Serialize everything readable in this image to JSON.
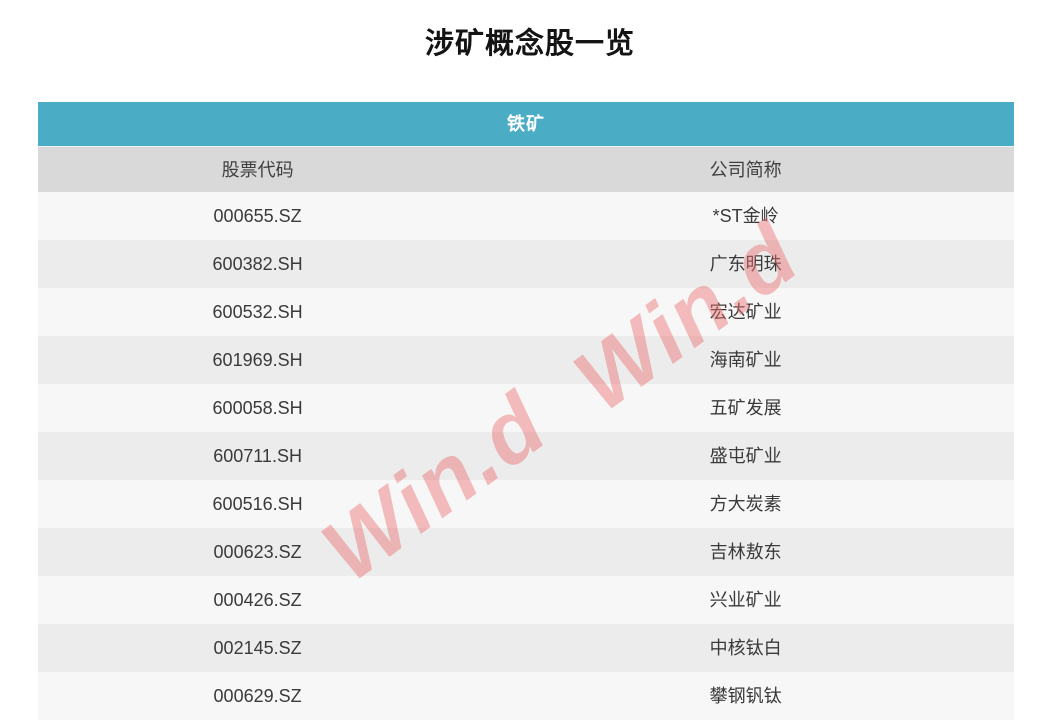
{
  "chart_data": {
    "type": "table",
    "title": "涉矿概念股一览",
    "group_header": "铁矿",
    "columns": [
      "股票代码",
      "公司简称"
    ],
    "rows": [
      [
        "000655.SZ",
        "*ST金岭"
      ],
      [
        "600382.SH",
        "广东明珠"
      ],
      [
        "600532.SH",
        "宏达矿业"
      ],
      [
        "601969.SH",
        "海南矿业"
      ],
      [
        "600058.SH",
        "五矿发展"
      ],
      [
        "600711.SH",
        "盛屯矿业"
      ],
      [
        "600516.SH",
        "方大炭素"
      ],
      [
        "000623.SZ",
        "吉林敖东"
      ],
      [
        "000426.SZ",
        "兴业矿业"
      ],
      [
        "002145.SZ",
        "中核钛白"
      ],
      [
        "000629.SZ",
        "攀钢钒钛"
      ]
    ],
    "watermark": "Win.d"
  },
  "colors": {
    "group_header_bg": "#4aacc5",
    "column_header_bg": "#d9d9d9",
    "row_light": "#f7f7f7",
    "row_dark": "#ececec",
    "title_text": "#141414",
    "cell_text": "#3a3a3a",
    "watermark_pink": "#ea6e6e"
  }
}
